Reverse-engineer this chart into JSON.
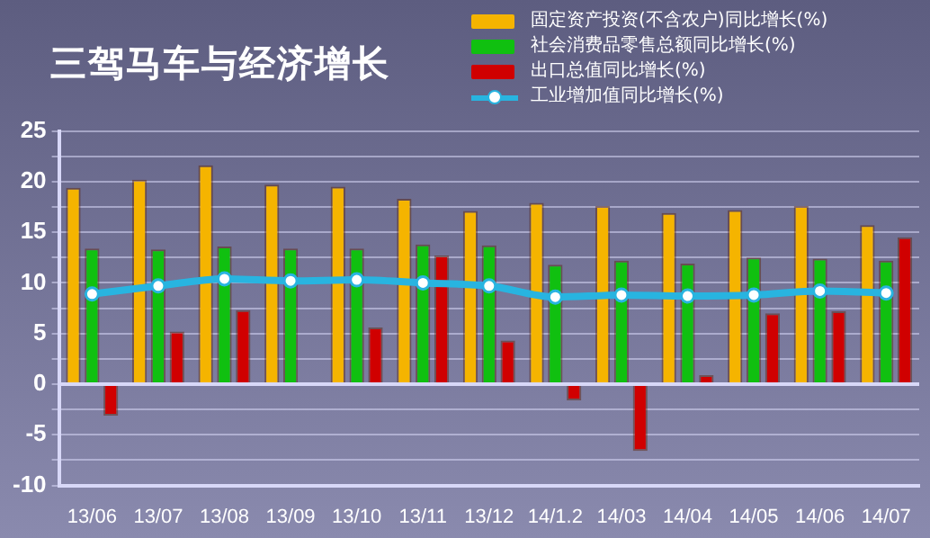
{
  "chart_data": {
    "type": "bar",
    "title": "三驾马车与经济增长",
    "categories": [
      "13/06",
      "13/07",
      "13/08",
      "13/09",
      "13/10",
      "13/11",
      "13/12",
      "14/1.2",
      "14/03",
      "14/04",
      "14/05",
      "14/06",
      "14/07"
    ],
    "series": [
      {
        "name": "固定资产投资(不含农户)同比增长(%)",
        "color": "#f5b400",
        "values": [
          19.4,
          20.2,
          21.6,
          19.7,
          19.5,
          18.3,
          17.1,
          17.9,
          17.6,
          16.9,
          17.2,
          17.6,
          15.7
        ]
      },
      {
        "name": "社会消费品零售总额同比增长(%)",
        "color": "#10c010",
        "values": [
          13.4,
          13.3,
          13.6,
          13.4,
          13.4,
          13.8,
          13.7,
          11.8,
          12.2,
          11.9,
          12.5,
          12.4,
          12.2
        ]
      },
      {
        "name": "出口总值同比增长(%)",
        "color": "#d00000",
        "values": [
          -3.1,
          5.2,
          7.3,
          0,
          5.6,
          12.7,
          4.3,
          -1.6,
          -6.6,
          0.9,
          7.0,
          7.2,
          14.5
        ]
      },
      {
        "name": "工业增加值同比增长(%)",
        "type": "line",
        "color": "#28b4e0",
        "values": [
          8.9,
          9.7,
          10.4,
          10.2,
          10.3,
          10.0,
          9.7,
          8.6,
          8.8,
          8.7,
          8.8,
          9.2,
          9.0
        ]
      }
    ],
    "ylim": [
      -10,
      25
    ],
    "yticks": [
      -10,
      {
        "value": -7.5,
        "label": null
      },
      -5,
      {
        "value": -2.5,
        "label": null
      },
      0,
      {
        "value": 2.5,
        "label": null
      },
      5,
      {
        "value": 7.5,
        "label": null
      },
      10,
      {
        "value": 12.5,
        "label": null
      },
      15,
      {
        "value": 17.5,
        "label": null
      },
      20,
      {
        "value": 22.5,
        "label": null
      },
      25
    ],
    "grid": "y",
    "legend": "top right",
    "marker": "circle"
  }
}
